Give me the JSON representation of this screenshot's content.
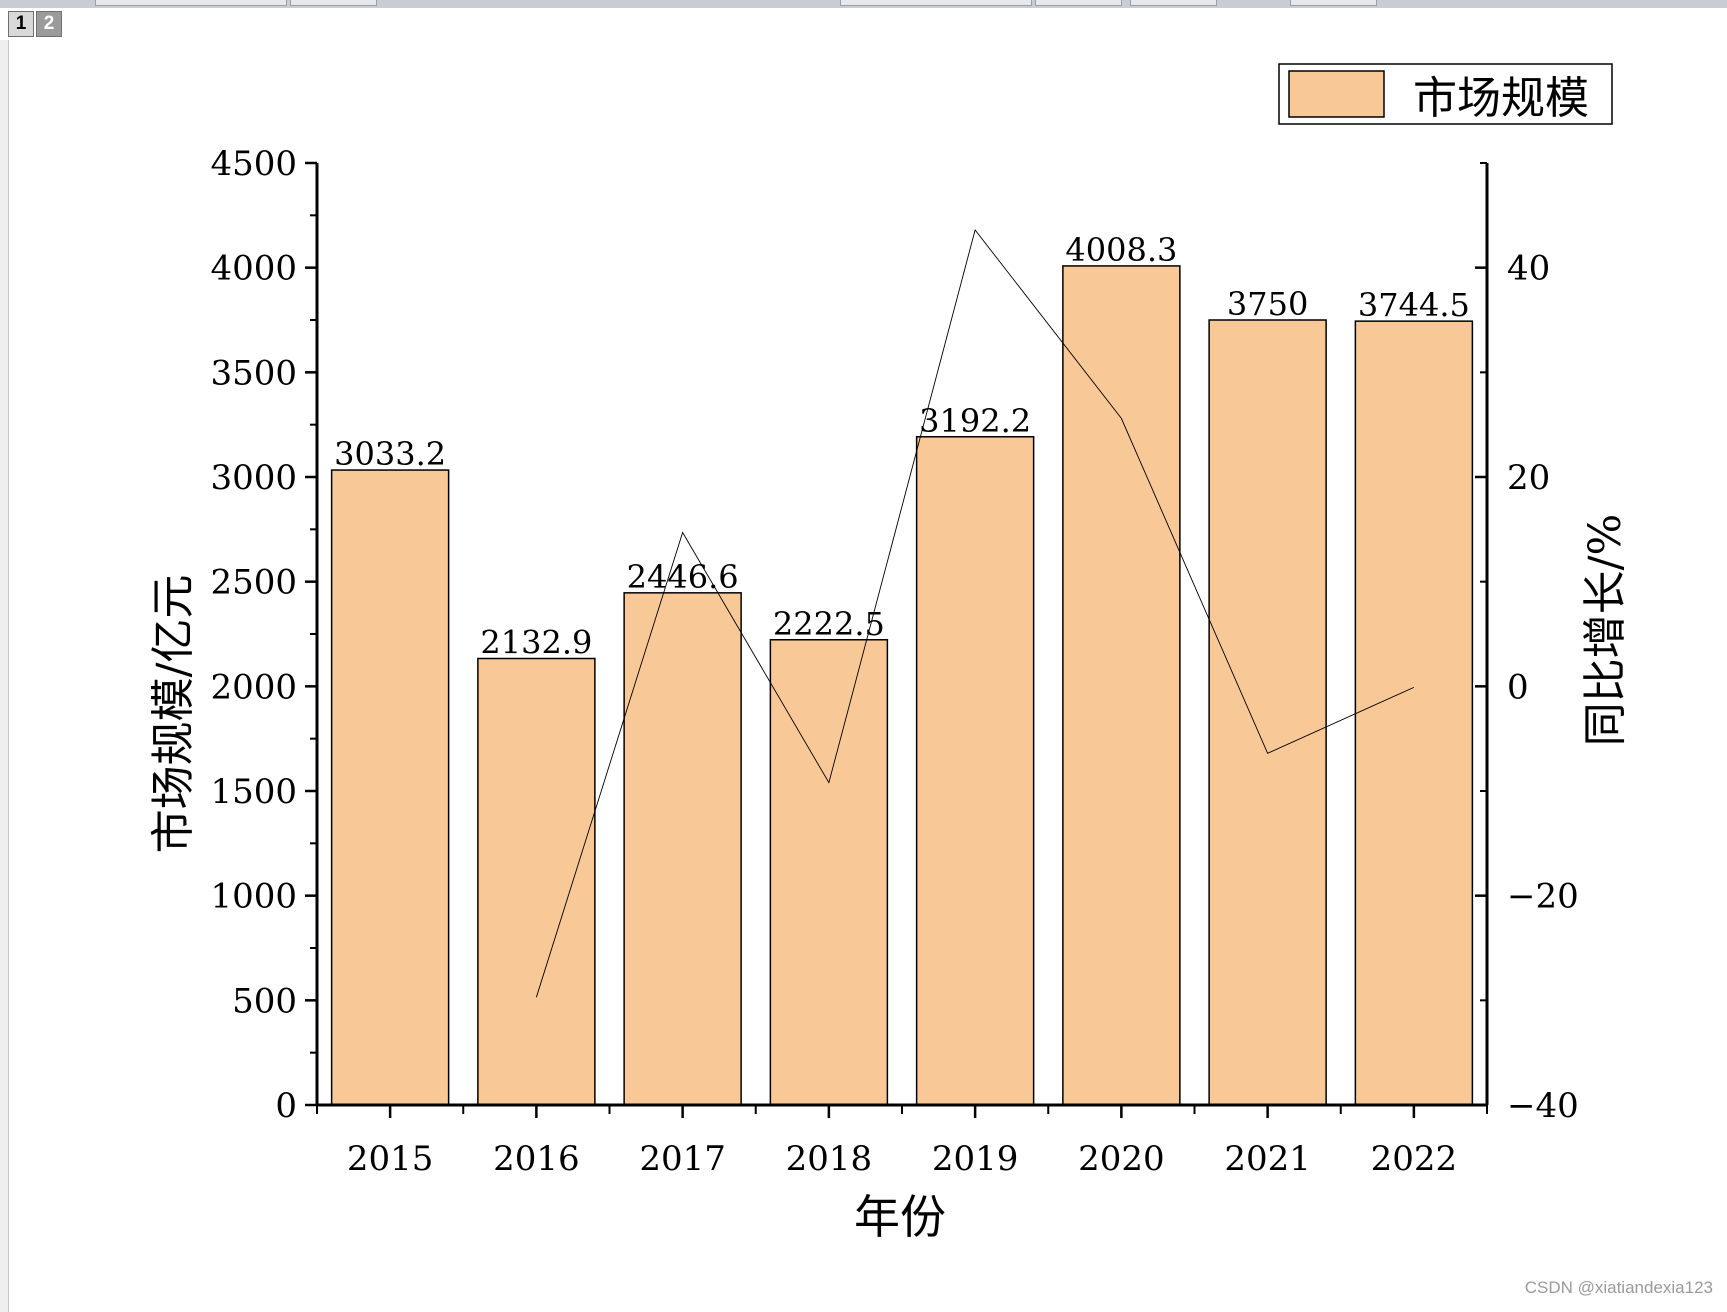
{
  "window": {
    "page_tabs": [
      {
        "label": "1",
        "active": true
      },
      {
        "label": "2",
        "active": false
      }
    ]
  },
  "chart_data": {
    "type": "bar",
    "categories": [
      "2015",
      "2016",
      "2017",
      "2018",
      "2019",
      "2020",
      "2021",
      "2022"
    ],
    "series": [
      {
        "name": "市场规模",
        "type": "bar",
        "axis": "left",
        "color": "#F9C897",
        "values": [
          3033.2,
          2132.9,
          2446.6,
          2222.5,
          3192.2,
          4008.3,
          3750,
          3744.5
        ],
        "data_labels": [
          "3033.2",
          "2132.9",
          "2446.6",
          "2222.5",
          "3192.2",
          "4008.3",
          "3750",
          "3744.5"
        ]
      },
      {
        "type": "line",
        "axis": "right",
        "color": "#000000",
        "values": [
          null,
          -29.7,
          14.7,
          -9.2,
          43.6,
          25.6,
          -6.4,
          -0.1
        ]
      }
    ],
    "xlabel": "年份",
    "ylabel": "市场规模/亿元",
    "y2label": "同比增长/%",
    "ylim": [
      0,
      4500
    ],
    "y2lim": [
      -40,
      50
    ],
    "yticks": [
      "0",
      "500",
      "1000",
      "1500",
      "2000",
      "2500",
      "3000",
      "3500",
      "4000",
      "4500"
    ],
    "y2ticks": [
      "-40",
      "-20",
      "0",
      "20",
      "40"
    ],
    "legend": "top-right",
    "grid": false
  },
  "watermark": "CSDN @xiatiandexia123"
}
